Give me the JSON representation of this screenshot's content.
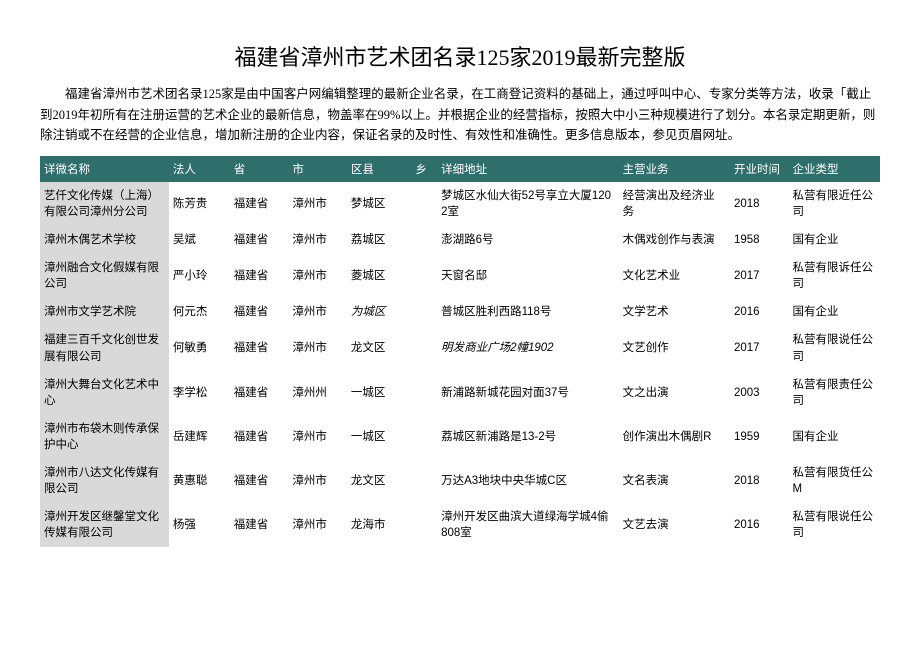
{
  "title": "福建省漳州市艺术团名录125家2019最新完整版",
  "intro": "福建省漳州市艺术团名录125家是由中国客户网编辑整理的最新企业名录，在工商登记资料的基础上，通过呼叫中心、专家分类等方法，收录「截止到2019年初所有在注册运营的艺术企业的最新信息，物盖率在99%以上。并根据企业的经营指标，按照大中小三种规模进行了划分。本名录定期更新，则除注销或不在经营的企业信息，增加新注册的企业内容，保证名录的及时性、有效性和准确性。更多信息版本，参见页眉网址。",
  "columns": [
    "详微名称",
    "法人",
    "省",
    "市",
    "区县",
    "乡",
    "详细地址",
    "主营业务",
    "开业时间",
    "企业类型"
  ],
  "rows": [
    {
      "name": "艺仟文化传媒（上海）有限公司漳州分公司",
      "legal": "陈芳贵",
      "prov": "福建省",
      "city": "漳州市",
      "dist": "梦城区",
      "town": "",
      "addr": "梦城区水仙大街52号享立大厦1202室",
      "biz": "经营演出及经济业务",
      "open": "2018",
      "type": "私营有限近任公司"
    },
    {
      "name": "漳州木偶艺术学校",
      "legal": "吴斌",
      "prov": "福建省",
      "city": "漳州市",
      "dist": "荔城区",
      "town": "",
      "addr": "澎湖路6号",
      "biz": "木偶戏创作与表演",
      "open": "1958",
      "type": "国有企业"
    },
    {
      "name": "漳州融合文化假媒有限公司",
      "legal": "严小玲",
      "prov": "福建省",
      "city": "漳州市",
      "dist": "菱城区",
      "town": "",
      "addr": "天窗名邸",
      "biz": "文化艺术业",
      "open": "2017",
      "type": "私营有限诉任公司"
    },
    {
      "name": "漳州市文学艺术院",
      "legal": "何元杰",
      "prov": "福建省",
      "city": "漳州市",
      "dist_italic": true,
      "dist": "为城区",
      "town": "",
      "addr": "普城区胜利西路118号",
      "biz": "文学艺术",
      "open": "2016",
      "type": "国有企业"
    },
    {
      "name": "福建三百千文化创世发展有限公司",
      "legal": "何敏勇",
      "prov": "福建省",
      "city": "漳州市",
      "dist": "龙文区",
      "town": "",
      "addr_italic": true,
      "addr": "明发商业广场2幢1902",
      "biz": "文艺创作",
      "open": "2017",
      "type": "私营有限说任公司"
    },
    {
      "name": "漳州大舞台文化艺术中心",
      "legal": "李学松",
      "prov": "福建省",
      "city": "漳州州",
      "dist": "一城区",
      "town": "",
      "addr": "新浦路新城花园对面37号",
      "biz": "文之出演",
      "open": "2003",
      "type": "私营有限责任公司"
    },
    {
      "name": "漳州市布袋木则传承保护中心",
      "legal": "岳建辉",
      "prov": "福建省",
      "city": "漳州市",
      "dist": "一城区",
      "town": "",
      "addr": "荔城区新浦路是13-2号",
      "biz": "创作演出木偶剧R",
      "open": "1959",
      "type": "国有企业"
    },
    {
      "name": "漳州市八达文化传媒有限公司",
      "legal": "黄惠聪",
      "prov": "福建省",
      "city": "漳州市",
      "dist": "龙文区",
      "town": "",
      "addr": "万达A3地块中央华城C区",
      "biz": "文名表演",
      "open": "2018",
      "type": "私营有限货任公M"
    },
    {
      "name": "漳州开发区继鏧堂文化传媒有限公司",
      "legal": "杨强",
      "prov": "福建省",
      "city": "漳州市",
      "dist": "龙海市",
      "town": "",
      "addr": "漳州开发区曲滨大道绿海学城4偷808室",
      "biz": "文艺去演",
      "open": "2016",
      "type": "私营有限说任公司"
    }
  ],
  "colors": {
    "header_bg": "#2e6e6b",
    "header_fg": "#ffffff",
    "name_col_bg": "#d9d9d9",
    "page_bg": "#ffffff",
    "text": "#000000"
  }
}
